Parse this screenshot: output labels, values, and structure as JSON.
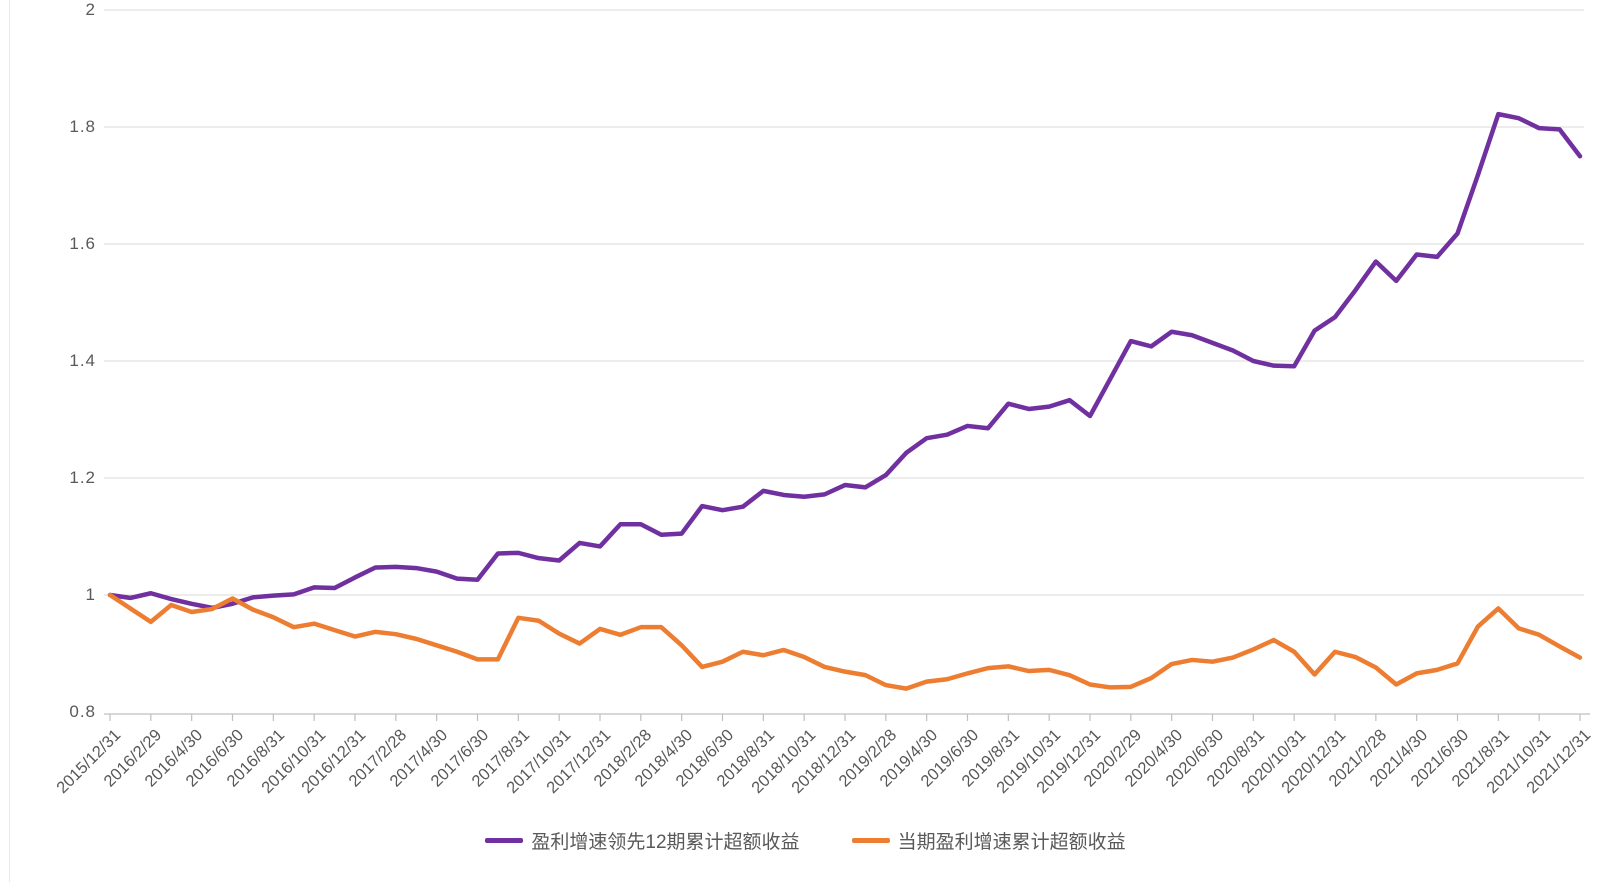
{
  "chart_data": {
    "type": "line",
    "title": "",
    "x_unit": "month-end dates, monthly points, tick label every 2 months",
    "x_tick_labels": [
      "2015/12/31",
      "2016/2/29",
      "2016/4/30",
      "2016/6/30",
      "2016/8/31",
      "2016/10/31",
      "2016/12/31",
      "2017/2/28",
      "2017/4/30",
      "2017/6/30",
      "2017/8/31",
      "2017/10/31",
      "2017/12/31",
      "2018/2/28",
      "2018/4/30",
      "2018/6/30",
      "2018/8/31",
      "2018/10/31",
      "2018/12/31",
      "2019/2/28",
      "2019/4/30",
      "2019/6/30",
      "2019/8/31",
      "2019/10/31",
      "2019/12/31",
      "2020/2/29",
      "2020/4/30",
      "2020/6/30",
      "2020/8/31",
      "2020/10/31",
      "2020/12/31",
      "2021/2/28",
      "2021/4/30",
      "2021/6/30",
      "2021/8/31",
      "2021/10/31",
      "2021/12/31"
    ],
    "points_per_tick": 2,
    "ylim": [
      0.8,
      2
    ],
    "yticks": [
      0.8,
      1,
      1.2,
      1.4,
      1.6,
      1.8,
      2
    ],
    "ytick_labels": [
      "0.8",
      "1",
      "1.2",
      "1.4",
      "1.6",
      "1.8",
      "2"
    ],
    "grid": "horizontal",
    "legend_position": "bottom",
    "grid_color": "#d9d9d9",
    "axis_color": "#bfbfbf",
    "label_color": "#595959",
    "series": [
      {
        "name": "盈利增速领先12期累计超额收益",
        "color": "#7030A0",
        "values": [
          1.0,
          0.995,
          1.003,
          0.993,
          0.985,
          0.978,
          0.985,
          0.996,
          0.999,
          1.001,
          1.013,
          1.012,
          1.03,
          1.047,
          1.048,
          1.046,
          1.04,
          1.028,
          1.026,
          1.071,
          1.072,
          1.063,
          1.059,
          1.089,
          1.083,
          1.121,
          1.121,
          1.103,
          1.105,
          1.152,
          1.145,
          1.151,
          1.178,
          1.171,
          1.168,
          1.172,
          1.188,
          1.184,
          1.205,
          1.243,
          1.268,
          1.274,
          1.289,
          1.285,
          1.327,
          1.318,
          1.322,
          1.333,
          1.306,
          1.37,
          1.434,
          1.425,
          1.45,
          1.444,
          1.431,
          1.418,
          1.4,
          1.392,
          1.391,
          1.452,
          1.475,
          1.521,
          1.57,
          1.537,
          1.582,
          1.578,
          1.618,
          1.718,
          1.822,
          1.815,
          1.798,
          1.796,
          1.75
        ]
      },
      {
        "name": "当期盈利增速累计超额收益",
        "color": "#ED7D31",
        "values": [
          1.0,
          0.977,
          0.954,
          0.983,
          0.971,
          0.976,
          0.994,
          0.975,
          0.962,
          0.945,
          0.951,
          0.94,
          0.929,
          0.937,
          0.933,
          0.925,
          0.914,
          0.903,
          0.89,
          0.89,
          0.961,
          0.956,
          0.934,
          0.917,
          0.942,
          0.932,
          0.945,
          0.945,
          0.914,
          0.877,
          0.886,
          0.903,
          0.897,
          0.906,
          0.894,
          0.877,
          0.869,
          0.863,
          0.846,
          0.84,
          0.852,
          0.856,
          0.866,
          0.875,
          0.878,
          0.87,
          0.872,
          0.863,
          0.847,
          0.842,
          0.843,
          0.858,
          0.882,
          0.889,
          0.886,
          0.893,
          0.907,
          0.923,
          0.903,
          0.864,
          0.903,
          0.894,
          0.876,
          0.847,
          0.866,
          0.872,
          0.883,
          0.946,
          0.977,
          0.943,
          0.932,
          0.912,
          0.893
        ]
      }
    ]
  }
}
